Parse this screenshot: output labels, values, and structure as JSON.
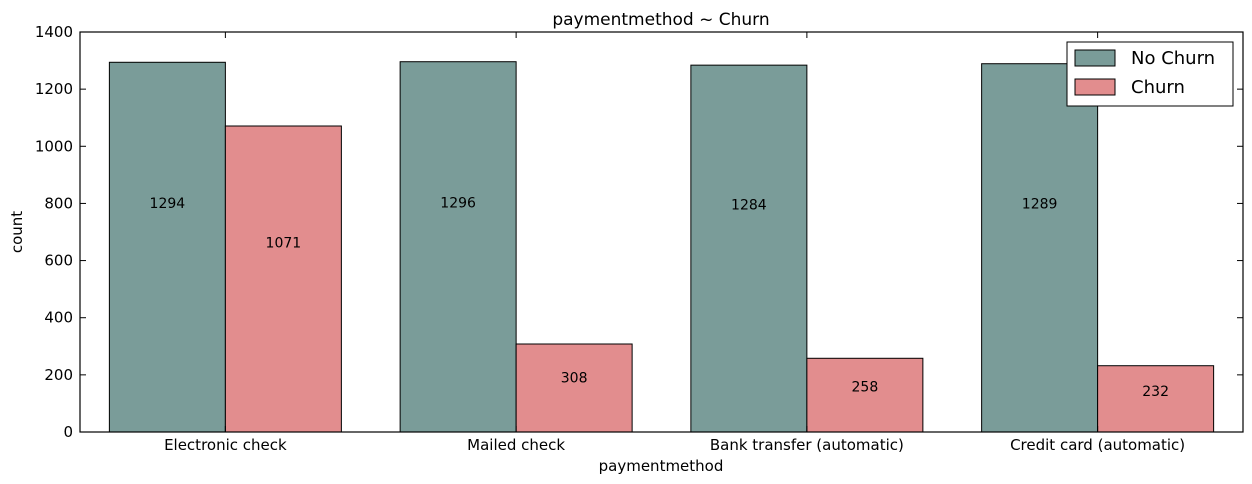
{
  "chart_data": {
    "type": "bar",
    "title": "paymentmethod ~ Churn",
    "xlabel": "paymentmethod",
    "ylabel": "count",
    "ylim": [
      0,
      1400
    ],
    "yticks": [
      "0",
      "200",
      "400",
      "600",
      "800",
      "1000",
      "1200",
      "1400"
    ],
    "categories": [
      "Electronic check",
      "Mailed check",
      "Bank transfer (automatic)",
      "Credit card (automatic)"
    ],
    "series": [
      {
        "name": "No Churn",
        "color": "#7a9c99",
        "values": [
          1294,
          1296,
          1284,
          1289
        ],
        "labels": [
          "1294",
          "1296",
          "1284",
          "1289"
        ]
      },
      {
        "name": "Churn",
        "color": "#e28d8e",
        "values": [
          1071,
          308,
          258,
          232
        ],
        "labels": [
          "1071",
          "308",
          "258",
          "232"
        ]
      }
    ],
    "legend": {
      "position": "top-right"
    },
    "grid": false
  }
}
